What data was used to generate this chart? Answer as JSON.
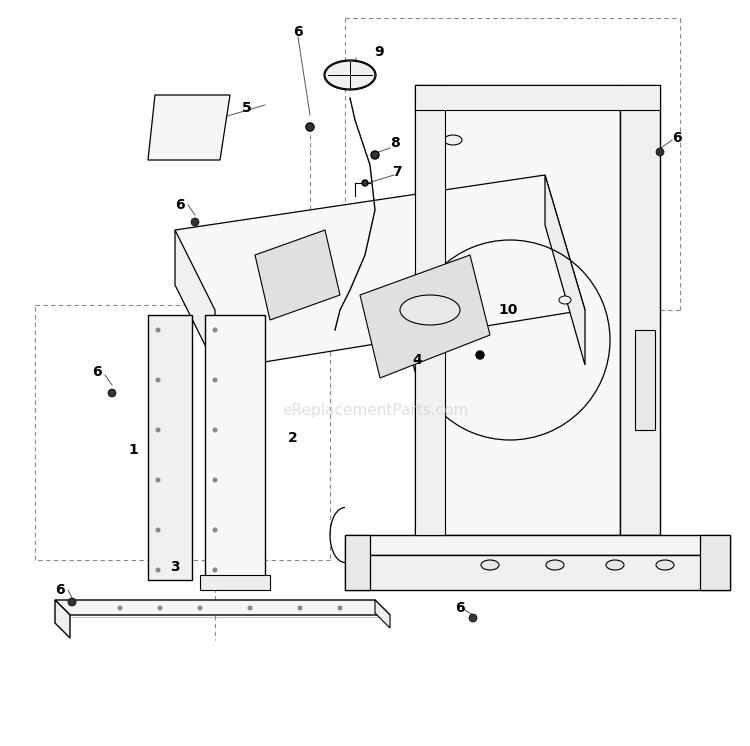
{
  "background_color": "#ffffff",
  "line_color": "#000000",
  "dash_color": "#888888",
  "watermark_text": "eReplacementParts.com",
  "watermark_color": "#cccccc",
  "watermark_fontsize": 11,
  "label_fontsize": 10,
  "figsize": [
    7.5,
    7.46
  ],
  "dpi": 100
}
